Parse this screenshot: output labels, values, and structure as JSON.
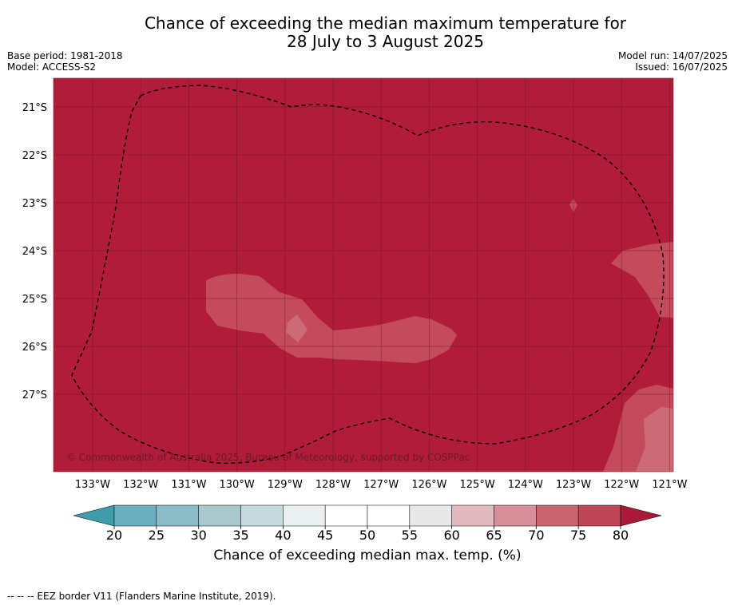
{
  "header": {
    "title_line1": "Chance of exceeding the median maximum temperature for",
    "title_line2": "28 July to 3 August 2025",
    "base_period": "Base period: 1981-2018",
    "model": "Model: ACCESS-S2",
    "model_run": "Model run: 14/07/2025",
    "issued": "Issued: 16/07/2025"
  },
  "map": {
    "background_color": "#b11c3a",
    "lat_labels": [
      "21°S",
      "22°S",
      "23°S",
      "24°S",
      "25°S",
      "26°S",
      "27°S"
    ],
    "lon_labels": [
      "133°W",
      "132°W",
      "131°W",
      "130°W",
      "129°W",
      "128°W",
      "127°W",
      "126°W",
      "125°W",
      "124°W",
      "123°W",
      "122°W",
      "121°W"
    ],
    "copyright": "© Commonwealth of Australia 2025, Bureau of Meteorology, supported by COSPPac"
  },
  "colorbar": {
    "ticks": [
      "20",
      "25",
      "30",
      "35",
      "40",
      "45",
      "50",
      "55",
      "60",
      "65",
      "70",
      "75",
      "80"
    ],
    "colors": [
      "#6aafbe",
      "#8bbbc6",
      "#a8c8cd",
      "#c8dade",
      "#eaf0f2",
      "#ffffff",
      "#ffffff",
      "#e8e8e8",
      "#e2b9bf",
      "#d68f99",
      "#c9656f",
      "#bf4656"
    ],
    "under_color": "#3e9cab",
    "over_color": "#a8193a",
    "label": "Chance of exceeding median max. temp. (%)"
  },
  "footer": {
    "legend": "--  --  -- EEZ border V11 (Flanders Marine Institute, 2019)."
  }
}
